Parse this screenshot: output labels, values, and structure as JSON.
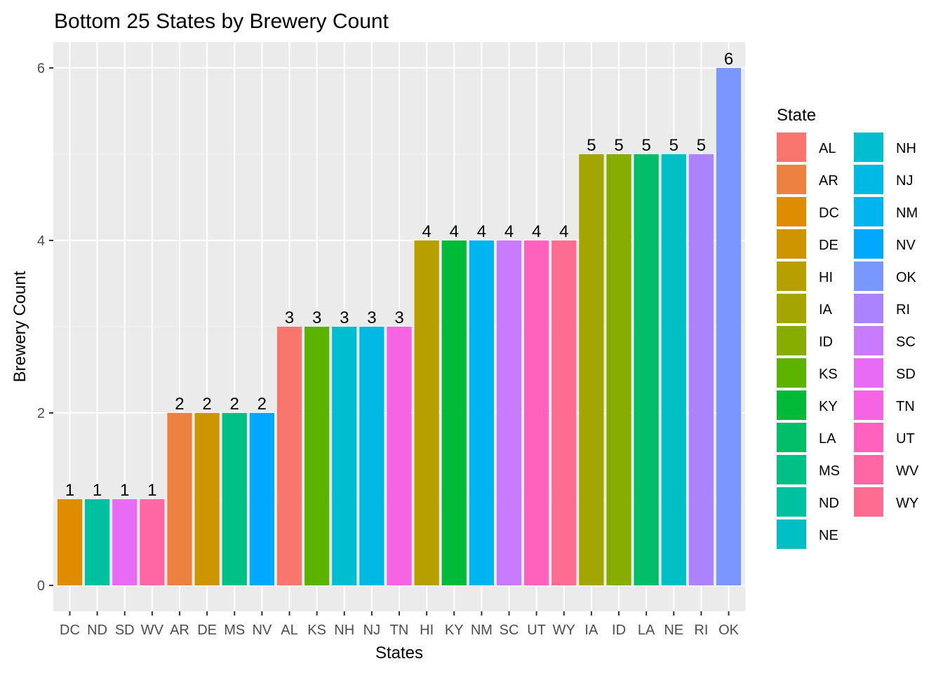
{
  "chart_data": {
    "type": "bar",
    "title": "Bottom 25 States by Brewery Count",
    "xlabel": "States",
    "ylabel": "Brewery Count",
    "ylim": [
      -0.3,
      6.3
    ],
    "yticks": [
      0,
      2,
      4,
      6
    ],
    "grid": true,
    "legend_position": "right",
    "categories": [
      "DC",
      "ND",
      "SD",
      "WV",
      "AR",
      "DE",
      "MS",
      "NV",
      "AL",
      "KS",
      "NH",
      "NJ",
      "TN",
      "HI",
      "KY",
      "NM",
      "SC",
      "UT",
      "WY",
      "IA",
      "ID",
      "LA",
      "NE",
      "RI",
      "OK"
    ],
    "values": [
      1,
      1,
      1,
      1,
      2,
      2,
      2,
      2,
      3,
      3,
      3,
      3,
      3,
      4,
      4,
      4,
      4,
      4,
      4,
      5,
      5,
      5,
      5,
      5,
      6
    ],
    "legend": {
      "title": "State",
      "entries": [
        {
          "label": "AL",
          "color": "#F8766D"
        },
        {
          "label": "AR",
          "color": "#EC8141"
        },
        {
          "label": "DC",
          "color": "#DE8C00"
        },
        {
          "label": "DE",
          "color": "#CD9600"
        },
        {
          "label": "HI",
          "color": "#B79F00"
        },
        {
          "label": "IA",
          "color": "#A3A500"
        },
        {
          "label": "ID",
          "color": "#86AC00"
        },
        {
          "label": "KS",
          "color": "#5BB300"
        },
        {
          "label": "KY",
          "color": "#00BA38"
        },
        {
          "label": "LA",
          "color": "#00BE67"
        },
        {
          "label": "MS",
          "color": "#00C085"
        },
        {
          "label": "ND",
          "color": "#00C19F"
        },
        {
          "label": "NE",
          "color": "#00BFC4"
        },
        {
          "label": "NH",
          "color": "#00BDD0"
        },
        {
          "label": "NJ",
          "color": "#00B9E3"
        },
        {
          "label": "NM",
          "color": "#00B4F0"
        },
        {
          "label": "NV",
          "color": "#00A9FF"
        },
        {
          "label": "OK",
          "color": "#7997FF"
        },
        {
          "label": "RI",
          "color": "#AB82FF"
        },
        {
          "label": "SC",
          "color": "#C77CFF"
        },
        {
          "label": "SD",
          "color": "#E76BF3"
        },
        {
          "label": "TN",
          "color": "#F564E3"
        },
        {
          "label": "UT",
          "color": "#FF62BC"
        },
        {
          "label": "WV",
          "color": "#FF67A4"
        },
        {
          "label": "WY",
          "color": "#FF6C91"
        }
      ]
    },
    "colors": {
      "panel_background": "#EBEBEB",
      "grid_major": "#FFFFFF",
      "grid_minor": "#F4F4F4",
      "tick_text": "#4D4D4D"
    }
  }
}
